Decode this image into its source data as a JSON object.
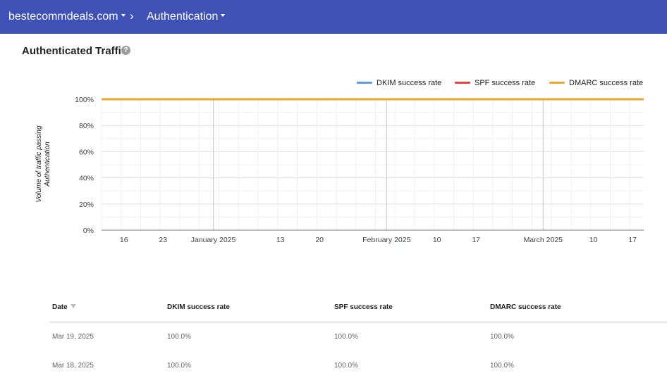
{
  "header": {
    "domain_label": "bestecommdeals.com",
    "separator": "›",
    "page_label": "Authentication"
  },
  "section": {
    "title": "Authenticated Traffic",
    "help_glyph": "?"
  },
  "chart_data": {
    "type": "line",
    "title": "",
    "ylabel": "Volume of traffic passing Authentication",
    "y_ticks": [
      "0%",
      "20%",
      "40%",
      "60%",
      "80%",
      "100%"
    ],
    "ylim": [
      0,
      100
    ],
    "x_ticks": [
      "16",
      "23",
      "January 2025",
      "13",
      "20",
      "February 2025",
      "10",
      "17",
      "March 2025",
      "10",
      "17"
    ],
    "x_tick_dates": [
      "2024-12-16",
      "2024-12-23",
      "2025-01-01",
      "2025-01-13",
      "2025-01-20",
      "2025-02-01",
      "2025-02-10",
      "2025-02-17",
      "2025-03-01",
      "2025-03-10",
      "2025-03-17"
    ],
    "xlim": [
      "2024-12-12",
      "2025-03-19"
    ],
    "series": [
      {
        "name": "DKIM success rate",
        "color": "#5b9bea",
        "x": [
          "2024-12-12",
          "2025-03-19"
        ],
        "values": [
          100,
          100
        ]
      },
      {
        "name": "SPF success rate",
        "color": "#e8453c",
        "x": [
          "2024-12-12",
          "2025-03-19"
        ],
        "values": [
          100,
          100
        ]
      },
      {
        "name": "DMARC success rate",
        "color": "#f2a52a",
        "x": [
          "2024-12-12",
          "2025-03-19"
        ],
        "values": [
          100,
          100
        ]
      }
    ],
    "grid": true,
    "legend_position": "top-right"
  },
  "table": {
    "columns": [
      "Date",
      "DKIM success rate",
      "SPF success rate",
      "DMARC success rate"
    ],
    "rows": [
      [
        "Mar 19, 2025",
        "100.0%",
        "100.0%",
        "100.0%"
      ],
      [
        "Mar 18, 2025",
        "100.0%",
        "100.0%",
        "100.0%"
      ]
    ]
  }
}
